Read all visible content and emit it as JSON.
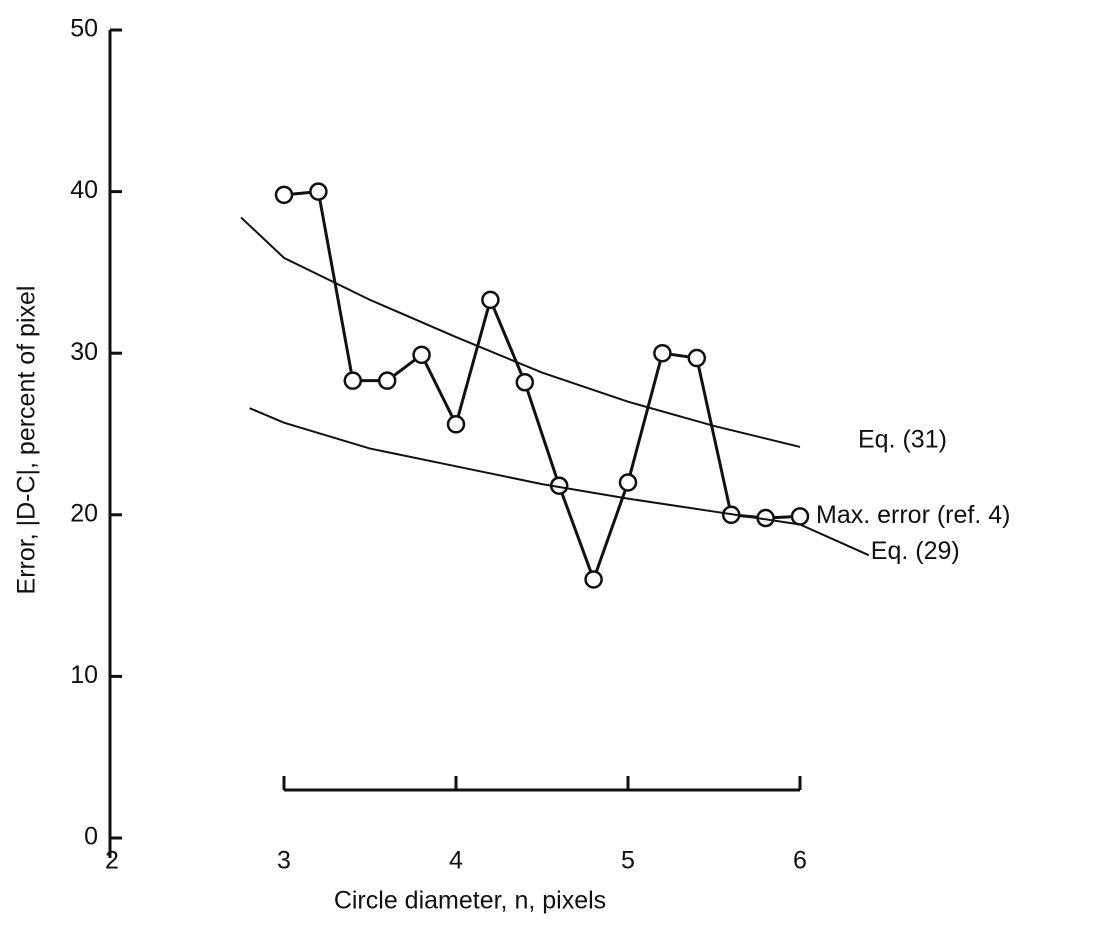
{
  "chart_data": {
    "type": "line",
    "xlabel": "Circle diameter, n, pixels",
    "ylabel": "Error, |D-C|, percent of pixel",
    "xlim": [
      2,
      6
    ],
    "xticks": [
      2,
      3,
      4,
      5,
      6
    ],
    "ylim": [
      0,
      50
    ],
    "yticks": [
      0,
      10,
      20,
      30,
      40,
      50
    ],
    "series": [
      {
        "name": "Max. error (ref. 4)",
        "color": "#111111",
        "marker": "circle",
        "x": [
          3.0,
          3.2,
          3.4,
          3.6,
          3.8,
          4.0,
          4.2,
          4.4,
          4.6,
          4.8,
          5.0,
          5.2,
          5.4,
          5.6,
          5.8,
          6.0
        ],
        "values": [
          39.8,
          40,
          28.3,
          28.3,
          29.9,
          25.6,
          33.3,
          28.2,
          21.8,
          16,
          22,
          30,
          29.7,
          20,
          19.8,
          19.9
        ]
      },
      {
        "name": "Eq. (31)",
        "color": "#111111",
        "x": [
          2.75,
          3,
          3.5,
          4,
          4.5,
          5,
          5.5,
          6
        ],
        "values": [
          38.4,
          35.9,
          33.3,
          31.0,
          28.8,
          27.0,
          25.5,
          24.2
        ]
      },
      {
        "name": "Eq. (29)",
        "color": "#111111",
        "x": [
          2.8,
          3,
          3.5,
          4,
          4.5,
          5,
          5.5,
          6,
          6.4
        ],
        "values": [
          26.6,
          25.7,
          24.1,
          23.0,
          21.9,
          21.0,
          20.2,
          19.4,
          17.5
        ]
      }
    ]
  }
}
